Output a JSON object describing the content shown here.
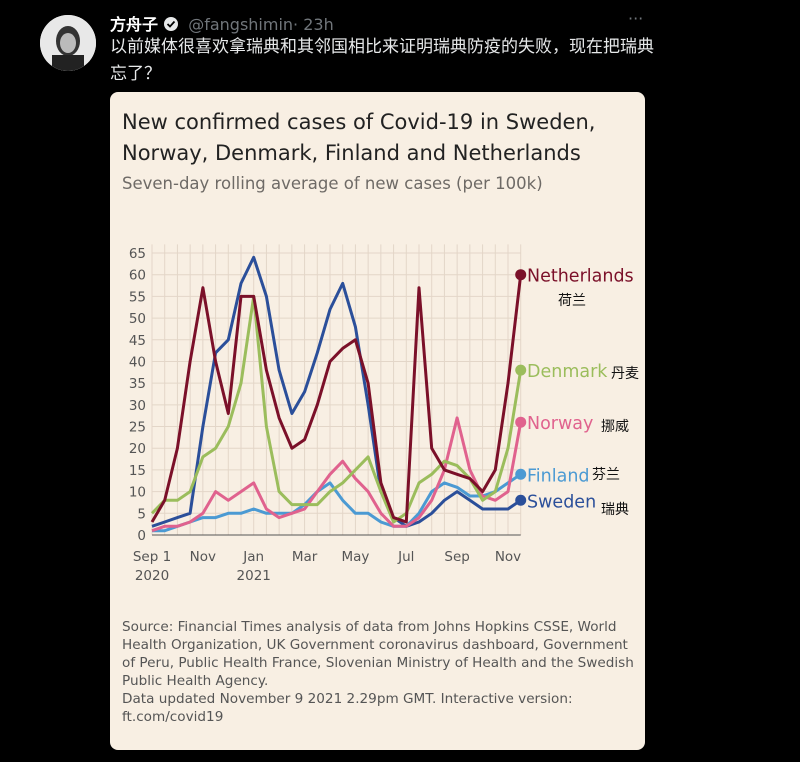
{
  "tweet": {
    "author": "方舟子",
    "handle": "@fangshimin",
    "time": "· 23h",
    "more": "···",
    "text": "以前媒体很喜欢拿瑞典和其邻国相比来证明瑞典防疫的失败，现在把瑞典忘了？"
  },
  "chart_data": {
    "type": "line",
    "title": "New confirmed cases of Covid-19 in Sweden, Norway, Denmark, Finland and Netherlands",
    "subtitle": "Seven-day rolling average of new cases (per 100k)",
    "categories": [
      "Sep 1\n2020",
      null,
      null,
      null,
      "Nov",
      null,
      null,
      null,
      "Jan\n2021",
      null,
      null,
      null,
      "Mar",
      null,
      null,
      null,
      "May",
      null,
      null,
      null,
      "Jul",
      null,
      null,
      null,
      "Sep",
      null,
      null,
      null,
      "Nov",
      null
    ],
    "ylim": [
      0,
      67
    ],
    "yticks": [
      0,
      5,
      10,
      15,
      20,
      25,
      30,
      35,
      40,
      45,
      50,
      55,
      60,
      65
    ],
    "grid": true,
    "series": [
      {
        "name": "Netherlands",
        "annotation": "荷兰",
        "color": "#7b1029",
        "values": [
          3,
          8,
          20,
          40,
          57,
          40,
          28,
          55,
          55,
          38,
          27,
          20,
          22,
          30,
          40,
          43,
          45,
          35,
          12,
          4,
          3,
          57,
          20,
          15,
          14,
          13,
          10,
          15,
          35,
          60
        ]
      },
      {
        "name": "Denmark",
        "annotation": "丹麦",
        "color": "#9bbd5c",
        "values": [
          5,
          8,
          8,
          10,
          18,
          20,
          25,
          35,
          55,
          25,
          10,
          7,
          7,
          7,
          10,
          12,
          15,
          18,
          10,
          3,
          5,
          12,
          14,
          17,
          16,
          13,
          8,
          10,
          20,
          38
        ]
      },
      {
        "name": "Norway",
        "annotation": "挪威",
        "color": "#e0628e",
        "values": [
          1,
          2,
          2,
          3,
          5,
          10,
          8,
          10,
          12,
          6,
          4,
          5,
          6,
          10,
          14,
          17,
          13,
          10,
          5,
          2,
          2,
          4,
          8,
          15,
          27,
          15,
          9,
          8,
          10,
          26
        ]
      },
      {
        "name": "Finland",
        "annotation": "芬兰",
        "color": "#4b9ad3",
        "values": [
          1,
          1,
          2,
          3,
          4,
          4,
          5,
          5,
          6,
          5,
          5,
          5,
          7,
          10,
          12,
          8,
          5,
          5,
          3,
          2,
          2,
          5,
          10,
          12,
          11,
          9,
          9,
          10,
          12,
          14
        ]
      },
      {
        "name": "Sweden",
        "annotation": "瑞典",
        "color": "#2b4f9a",
        "values": [
          2,
          3,
          4,
          5,
          25,
          42,
          45,
          58,
          64,
          55,
          38,
          28,
          33,
          42,
          52,
          58,
          48,
          30,
          10,
          4,
          2,
          3,
          5,
          8,
          10,
          8,
          6,
          6,
          6,
          8
        ]
      }
    ],
    "source": "Source: Financial Times analysis of data from Johns Hopkins CSSE, World Health Organization, UK Government coronavirus dashboard, Government of Peru, Public Health France, Slovenian Ministry of Health and the Swedish Public Health Agency.",
    "updated": "Data updated November 9 2021 2.29pm GMT. Interactive version: ft.com/covid19"
  }
}
